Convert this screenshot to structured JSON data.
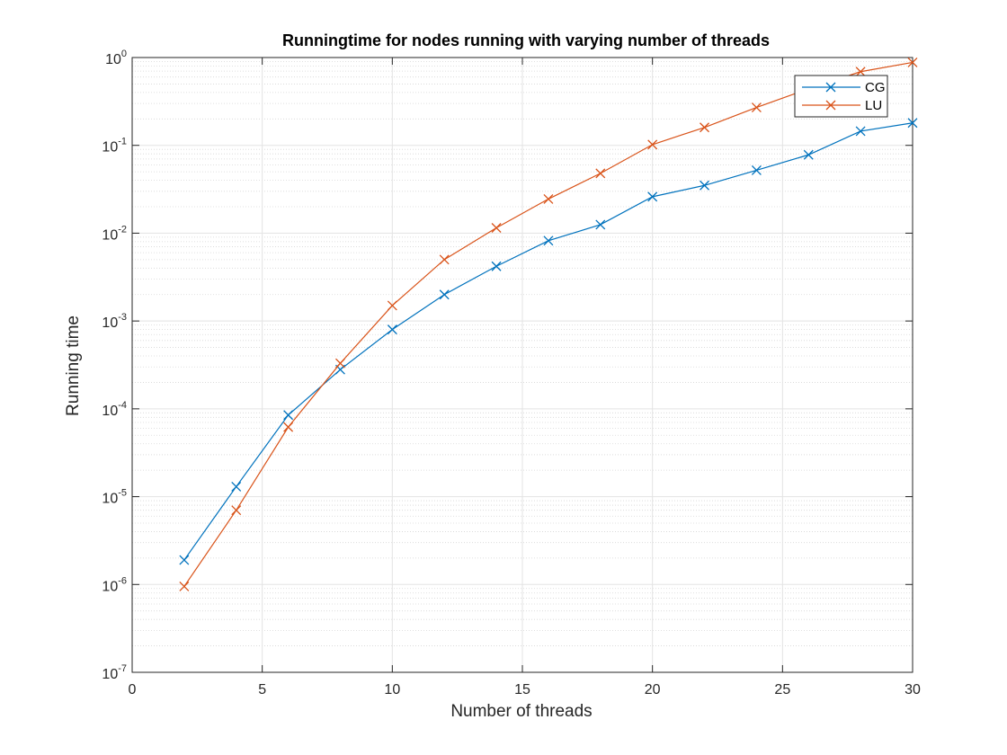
{
  "chart_data": {
    "type": "line",
    "title": "Runningtime for nodes running with varying number of threads",
    "xlabel": "Number of threads",
    "ylabel": "Running time",
    "xlim": [
      0,
      30
    ],
    "ylim": [
      1e-07,
      1
    ],
    "yscale": "log",
    "grid": true,
    "minor_grid": true,
    "legend_position": "top-right",
    "x_ticks": [
      0,
      5,
      10,
      15,
      20,
      25,
      30
    ],
    "y_ticks": [
      {
        "base": "10",
        "exp": "-7",
        "value": 1e-07
      },
      {
        "base": "10",
        "exp": "-6",
        "value": 1e-06
      },
      {
        "base": "10",
        "exp": "-5",
        "value": 1e-05
      },
      {
        "base": "10",
        "exp": "-4",
        "value": 0.0001
      },
      {
        "base": "10",
        "exp": "-3",
        "value": 0.001
      },
      {
        "base": "10",
        "exp": "-2",
        "value": 0.01
      },
      {
        "base": "10",
        "exp": "-1",
        "value": 0.1
      },
      {
        "base": "10",
        "exp": "0",
        "value": 1
      }
    ],
    "x": [
      2,
      4,
      6,
      8,
      10,
      12,
      14,
      16,
      18,
      20,
      22,
      24,
      26,
      28,
      30
    ],
    "series": [
      {
        "name": "CG",
        "color": "#0072BD",
        "marker": "x",
        "values": [
          1.9e-06,
          1.3e-05,
          8.5e-05,
          0.00028,
          0.0008,
          0.002,
          0.0042,
          0.0082,
          0.0125,
          0.026,
          0.035,
          0.052,
          0.078,
          0.145,
          0.18
        ]
      },
      {
        "name": "LU",
        "color": "#D95319",
        "marker": "x",
        "values": [
          9.5e-07,
          7e-06,
          6.2e-05,
          0.00033,
          0.0015,
          0.005,
          0.0115,
          0.0245,
          0.048,
          0.102,
          0.16,
          0.27,
          0.44,
          0.69,
          0.88
        ]
      }
    ]
  }
}
